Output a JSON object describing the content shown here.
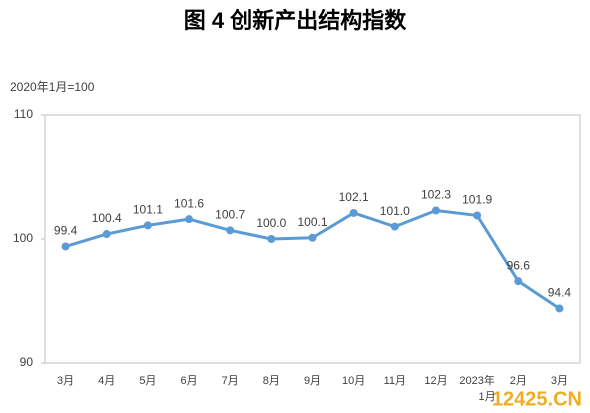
{
  "chart_data": {
    "type": "line",
    "title": "图 4  创新产出结构指数",
    "subtitle": "2020年1月=100",
    "categories": [
      "3月",
      "4月",
      "5月",
      "6月",
      "7月",
      "8月",
      "9月",
      "10月",
      "11月",
      "12月",
      "2023年\n1月",
      "2月",
      "3月"
    ],
    "series": [
      {
        "name": "创新产出结构指数",
        "color": "#5b9bd5",
        "values": [
          99.4,
          100.4,
          101.1,
          101.6,
          100.7,
          100,
          100.1,
          102.1,
          101,
          102.3,
          101.9,
          96.6,
          94.4
        ],
        "value_labels": [
          "99.4",
          "100.4",
          "101.1",
          "101.6",
          "100.7",
          "100.0",
          "100.1",
          "102.1",
          "101.0",
          "102.3",
          "101.9",
          "96.6",
          "94.4"
        ]
      }
    ],
    "ylim": [
      90,
      110
    ],
    "yticks": [
      90,
      100,
      110
    ],
    "grid": false,
    "watermark": "12425.CN"
  }
}
